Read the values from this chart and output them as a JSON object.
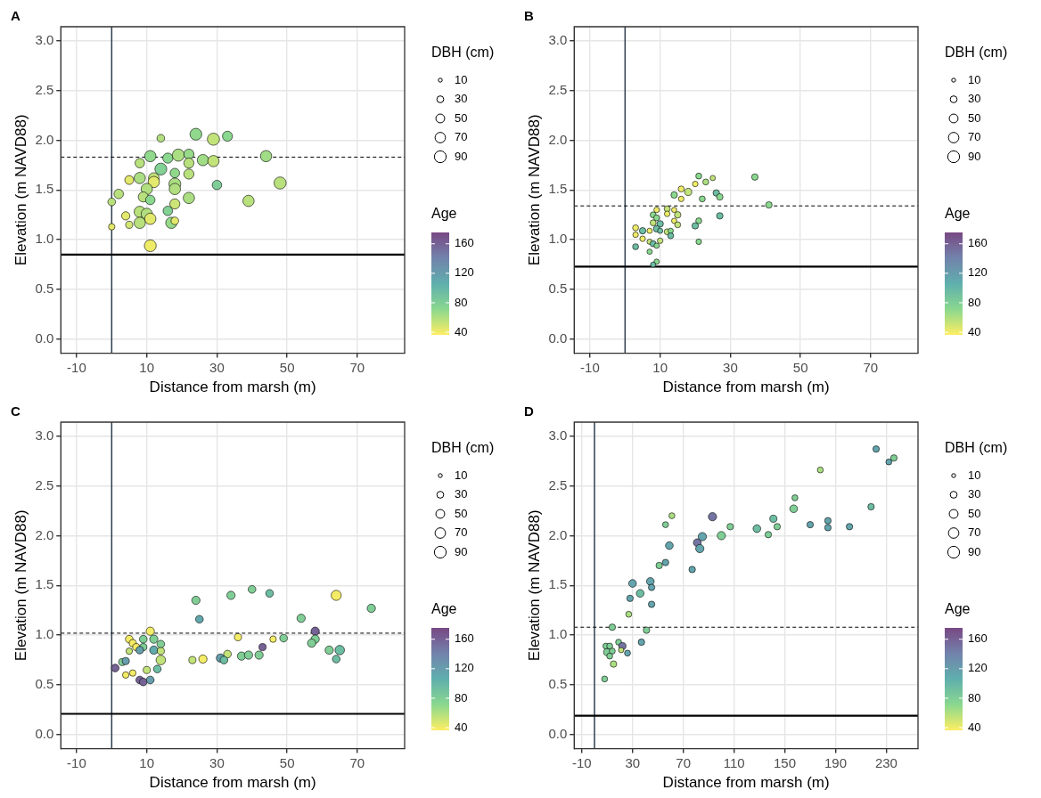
{
  "chart_data": [
    {
      "type": "bubble",
      "title": "A",
      "xlabel": "Distance from marsh (m)",
      "ylabel": "Elevation (m NAVD88)",
      "legend_title": "DBH (cm)",
      "clabel": "Age",
      "grid": true,
      "xlim": [
        -14.5,
        83.5
      ],
      "xticks": [
        -10,
        10,
        30,
        50,
        70
      ],
      "ylim": [
        -0.14,
        3.14
      ],
      "yticks": [
        {
          "value": 0,
          "label": "0.0"
        },
        0.5,
        {
          "value": 1,
          "label": "1.0"
        },
        1.5,
        {
          "value": 2,
          "label": "2.0"
        },
        2.5,
        {
          "value": 3,
          "label": "3.0"
        }
      ],
      "size_legend": [
        10,
        30,
        50,
        70,
        90
      ],
      "clim": [
        37,
        176
      ],
      "cticks": [
        40,
        80,
        120,
        160
      ],
      "ref_lines": [
        {
          "axis": "x",
          "value": 0,
          "color": "#2f3e4e"
        },
        {
          "axis": "y",
          "value": 0.85,
          "color": "#000000"
        },
        {
          "axis": "y",
          "value": 1.83,
          "color": "#000000",
          "line_style": "dashed"
        }
      ],
      "x": [
        14,
        24,
        29,
        33,
        11,
        16,
        19,
        22,
        26,
        29,
        44,
        8,
        22,
        14,
        8,
        12,
        18,
        22,
        5,
        12,
        18,
        18,
        10,
        30,
        48,
        2,
        0,
        9,
        11,
        22,
        39,
        18,
        8,
        10,
        11,
        4,
        5,
        0,
        8,
        16,
        17,
        18,
        11
      ],
      "values": [
        2.02,
        2.06,
        2.01,
        2.04,
        1.84,
        1.82,
        1.85,
        1.86,
        1.8,
        1.79,
        1.84,
        1.77,
        1.77,
        1.71,
        1.62,
        1.62,
        1.67,
        1.66,
        1.6,
        1.58,
        1.56,
        1.51,
        1.51,
        1.55,
        1.57,
        1.46,
        1.38,
        1.43,
        1.4,
        1.42,
        1.39,
        1.36,
        1.28,
        1.26,
        1.21,
        1.24,
        1.15,
        1.13,
        1.17,
        1.29,
        1.17,
        1.19,
        0.94
      ],
      "sizes": [
        38,
        90,
        95,
        65,
        82,
        66,
        95,
        66,
        82,
        82,
        82,
        58,
        66,
        91,
        82,
        73,
        58,
        66,
        51,
        82,
        91,
        82,
        82,
        58,
        95,
        58,
        38,
        66,
        58,
        82,
        82,
        66,
        82,
        82,
        82,
        44,
        33,
        27,
        82,
        58,
        82,
        38,
        91
      ],
      "cvalues": [
        60,
        70,
        55,
        72,
        70,
        72,
        62,
        68,
        65,
        55,
        65,
        58,
        58,
        78,
        62,
        55,
        70,
        58,
        45,
        45,
        62,
        60,
        60,
        82,
        58,
        58,
        58,
        58,
        72,
        62,
        58,
        52,
        58,
        60,
        45,
        45,
        50,
        45,
        58,
        78,
        68,
        45,
        42
      ]
    },
    {
      "type": "bubble",
      "title": "B",
      "xlabel": "Distance from marsh (m)",
      "ylabel": "Elevation (m NAVD88)",
      "legend_title": "DBH (cm)",
      "clabel": "Age",
      "grid": true,
      "xlim": [
        -14.5,
        83.5
      ],
      "xticks": [
        -10,
        10,
        30,
        50,
        70
      ],
      "ylim": [
        -0.14,
        3.14
      ],
      "yticks": [
        {
          "value": 0,
          "label": "0.0"
        },
        0.5,
        {
          "value": 1,
          "label": "1.0"
        },
        1.5,
        {
          "value": 2,
          "label": "2.0"
        },
        2.5,
        {
          "value": 3,
          "label": "3.0"
        }
      ],
      "size_legend": [
        10,
        30,
        50,
        70,
        90
      ],
      "clim": [
        37,
        176
      ],
      "cticks": [
        40,
        80,
        120,
        160
      ],
      "ref_lines": [
        {
          "axis": "x",
          "value": 0,
          "color": "#2f3e4e"
        },
        {
          "axis": "y",
          "value": 0.73,
          "color": "#000000"
        },
        {
          "axis": "y",
          "value": 1.34,
          "color": "#000000",
          "line_style": "dashed"
        }
      ],
      "x": [
        21,
        25,
        23,
        20,
        37,
        16,
        18,
        16,
        14,
        22,
        26,
        27,
        41,
        27,
        21,
        20,
        21,
        9,
        12,
        14,
        12,
        15,
        8,
        9,
        14,
        15,
        8,
        10,
        3,
        5,
        7,
        9,
        12,
        13,
        10,
        13,
        3,
        5,
        7,
        8,
        10,
        9,
        3,
        7,
        9,
        8
      ],
      "values": [
        1.64,
        1.62,
        1.58,
        1.56,
        1.63,
        1.51,
        1.48,
        1.41,
        1.45,
        1.41,
        1.47,
        1.43,
        1.35,
        1.24,
        1.19,
        1.14,
        0.98,
        1.3,
        1.31,
        1.3,
        1.26,
        1.25,
        1.25,
        1.22,
        1.19,
        1.15,
        1.17,
        1.16,
        1.12,
        1.09,
        1.09,
        1.11,
        1.08,
        1.09,
        1.09,
        1.04,
        1.05,
        1.01,
        0.98,
        0.96,
        0.99,
        0.94,
        0.93,
        0.88,
        0.78,
        0.75
      ],
      "sizes": [
        23,
        18,
        23,
        20,
        27,
        23,
        33,
        20,
        27,
        23,
        27,
        27,
        27,
        27,
        23,
        27,
        20,
        20,
        23,
        18,
        20,
        27,
        23,
        23,
        18,
        23,
        23,
        27,
        23,
        27,
        18,
        27,
        23,
        18,
        18,
        23,
        20,
        20,
        18,
        23,
        20,
        18,
        23,
        18,
        18,
        18
      ],
      "cvalues": [
        72,
        55,
        62,
        42,
        72,
        42,
        55,
        42,
        72,
        72,
        95,
        72,
        72,
        95,
        72,
        95,
        72,
        42,
        55,
        42,
        42,
        55,
        72,
        72,
        42,
        55,
        55,
        95,
        42,
        95,
        42,
        95,
        55,
        72,
        95,
        95,
        42,
        42,
        55,
        95,
        55,
        72,
        95,
        72,
        72,
        95
      ]
    },
    {
      "type": "bubble",
      "title": "C",
      "xlabel": "Distance from marsh (m)",
      "ylabel": "Elevation (m NAVD88)",
      "legend_title": "DBH (cm)",
      "clabel": "Age",
      "grid": true,
      "xlim": [
        -14.5,
        83.5
      ],
      "xticks": [
        -10,
        10,
        30,
        50,
        70
      ],
      "ylim": [
        -0.14,
        3.14
      ],
      "yticks": [
        {
          "value": 0,
          "label": "0.0"
        },
        0.5,
        {
          "value": 1,
          "label": "1.0"
        },
        1.5,
        {
          "value": 2,
          "label": "2.0"
        },
        2.5,
        {
          "value": 3,
          "label": "3.0"
        }
      ],
      "size_legend": [
        10,
        30,
        50,
        70,
        90
      ],
      "clim": [
        37,
        176
      ],
      "cticks": [
        40,
        80,
        120,
        160
      ],
      "ref_lines": [
        {
          "axis": "x",
          "value": 0,
          "color": "#2f3e4e"
        },
        {
          "axis": "y",
          "value": 0.21,
          "color": "#000000"
        },
        {
          "axis": "y",
          "value": 1.02,
          "color": "#000000",
          "line_style": "dashed"
        }
      ],
      "x": [
        24,
        34,
        40,
        45,
        64,
        74,
        25,
        54,
        58,
        36,
        46,
        49,
        58,
        57,
        43,
        62,
        65,
        64,
        33,
        31,
        32,
        37,
        39,
        42,
        23,
        26,
        11,
        5,
        9,
        12,
        6,
        7,
        9,
        14,
        12,
        5,
        8,
        14,
        14,
        3,
        4,
        1,
        13,
        10,
        6,
        4,
        8,
        9,
        11
      ],
      "values": [
        1.35,
        1.4,
        1.46,
        1.42,
        1.4,
        1.27,
        1.16,
        1.17,
        1.04,
        0.98,
        0.96,
        0.97,
        0.96,
        0.92,
        0.88,
        0.85,
        0.85,
        0.76,
        0.81,
        0.77,
        0.75,
        0.79,
        0.8,
        0.8,
        0.75,
        0.76,
        1.04,
        0.96,
        0.96,
        0.96,
        0.92,
        0.88,
        0.88,
        0.91,
        0.85,
        0.84,
        0.85,
        0.84,
        0.75,
        0.73,
        0.74,
        0.67,
        0.66,
        0.65,
        0.62,
        0.6,
        0.55,
        0.53,
        0.55
      ],
      "sizes": [
        44,
        44,
        38,
        38,
        66,
        44,
        38,
        44,
        44,
        33,
        27,
        38,
        44,
        44,
        33,
        44,
        58,
        38,
        38,
        44,
        38,
        44,
        44,
        44,
        33,
        44,
        44,
        38,
        38,
        44,
        33,
        33,
        33,
        38,
        44,
        27,
        38,
        33,
        58,
        33,
        33,
        38,
        38,
        33,
        27,
        27,
        38,
        38,
        38
      ],
      "cvalues": [
        80,
        80,
        80,
        95,
        40,
        80,
        112,
        80,
        160,
        40,
        40,
        80,
        80,
        80,
        160,
        80,
        95,
        95,
        55,
        120,
        95,
        80,
        80,
        80,
        55,
        40,
        40,
        40,
        80,
        80,
        40,
        40,
        80,
        80,
        110,
        55,
        120,
        55,
        55,
        80,
        120,
        160,
        95,
        55,
        40,
        40,
        160,
        160,
        120
      ]
    },
    {
      "type": "bubble",
      "title": "D",
      "xlabel": "Distance from marsh (m)",
      "ylabel": "Elevation (m NAVD88)",
      "legend_title": "DBH (cm)",
      "clabel": "Age",
      "grid": true,
      "xlim": [
        -16,
        255
      ],
      "xticks": [
        -10,
        30,
        70,
        110,
        150,
        190,
        230
      ],
      "ylim": [
        -0.14,
        3.14
      ],
      "yticks": [
        {
          "value": 0,
          "label": "0.0"
        },
        0.5,
        {
          "value": 1,
          "label": "1.0"
        },
        1.5,
        {
          "value": 2,
          "label": "2.0"
        },
        2.5,
        {
          "value": 3,
          "label": "3.0"
        }
      ],
      "size_legend": [
        10,
        30,
        50,
        70,
        90
      ],
      "clim": [
        37,
        176
      ],
      "cticks": [
        40,
        80,
        120,
        160
      ],
      "ref_lines": [
        {
          "axis": "x",
          "value": 0,
          "color": "#2f3e4e"
        },
        {
          "axis": "y",
          "value": 0.19,
          "color": "#000000"
        },
        {
          "axis": "y",
          "value": 1.08,
          "color": "#000000",
          "line_style": "dashed"
        }
      ],
      "x": [
        222,
        236,
        232,
        178,
        158,
        157,
        218,
        141,
        144,
        137,
        128,
        170,
        184,
        184,
        201,
        107,
        100,
        93,
        85,
        81,
        83,
        77,
        61,
        56,
        59,
        56,
        51,
        30,
        44,
        45,
        36,
        28,
        45,
        27,
        14,
        41,
        37,
        9,
        12,
        19,
        22,
        10,
        14,
        12,
        21,
        26,
        15,
        8
      ],
      "values": [
        2.87,
        2.78,
        2.74,
        2.66,
        2.38,
        2.27,
        2.29,
        2.17,
        2.09,
        2.01,
        2.07,
        2.11,
        2.15,
        2.08,
        2.09,
        2.09,
        2.0,
        2.19,
        1.99,
        1.93,
        1.87,
        1.66,
        2.2,
        2.11,
        1.9,
        1.73,
        1.7,
        1.52,
        1.54,
        1.48,
        1.42,
        1.37,
        1.31,
        1.21,
        1.08,
        1.05,
        0.93,
        0.89,
        0.89,
        0.93,
        0.89,
        0.83,
        0.84,
        0.79,
        0.85,
        0.82,
        0.71,
        0.56
      ],
      "sizes": [
        27,
        27,
        23,
        23,
        23,
        38,
        27,
        33,
        27,
        27,
        38,
        27,
        27,
        27,
        27,
        27,
        44,
        44,
        44,
        38,
        44,
        27,
        23,
        23,
        38,
        27,
        27,
        38,
        38,
        27,
        38,
        27,
        27,
        23,
        27,
        27,
        27,
        23,
        23,
        23,
        33,
        33,
        23,
        23,
        18,
        23,
        27,
        23
      ],
      "cvalues": [
        115,
        80,
        115,
        62,
        80,
        80,
        95,
        95,
        80,
        80,
        95,
        115,
        115,
        115,
        115,
        80,
        80,
        150,
        115,
        150,
        115,
        115,
        62,
        80,
        115,
        115,
        80,
        115,
        115,
        115,
        95,
        115,
        115,
        62,
        80,
        80,
        115,
        80,
        80,
        80,
        150,
        80,
        80,
        80,
        55,
        115,
        62,
        80
      ]
    }
  ]
}
